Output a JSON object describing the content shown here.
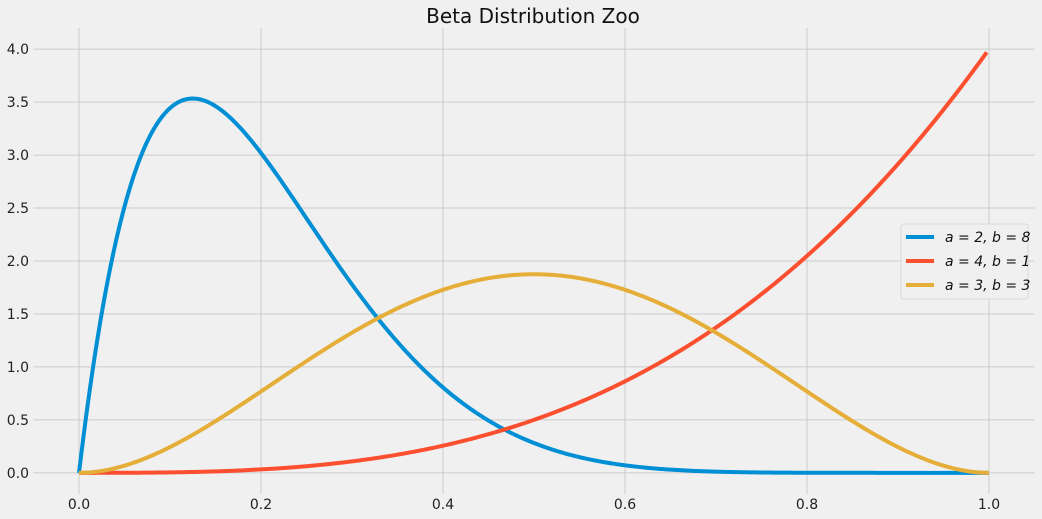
{
  "chart_data": {
    "type": "line",
    "title": "Beta Distribution Zoo",
    "xlabel": "",
    "ylabel": "",
    "xlim": [
      -0.05,
      1.05
    ],
    "ylim": [
      -0.2,
      4.2
    ],
    "xticks": [
      "0.0",
      "0.2",
      "0.4",
      "0.6",
      "0.8",
      "1.0"
    ],
    "yticks": [
      "0.0",
      "0.5",
      "1.0",
      "1.5",
      "2.0",
      "2.5",
      "3.0",
      "3.5",
      "4.0"
    ],
    "grid": true,
    "legend_position": "center-right",
    "x": [
      0,
      0.1,
      0.2,
      0.3,
      0.4,
      0.5,
      0.6,
      0.7,
      0.8,
      0.9,
      1.0
    ],
    "series": [
      {
        "name": "a = 2, b = 8",
        "a": 2,
        "b": 8,
        "color": "#008fd5",
        "values": [
          0,
          3.444,
          3.02,
          1.779,
          0.806,
          0.281,
          0.071,
          0.011,
          0.0007,
          0,
          0
        ]
      },
      {
        "name": "a = 4, b = 1",
        "a": 4,
        "b": 1,
        "color": "#fc4f30",
        "values": [
          0,
          0.004,
          0.032,
          0.108,
          0.256,
          0.5,
          0.864,
          1.372,
          2.048,
          2.916,
          4.0
        ]
      },
      {
        "name": "a = 3, b = 3",
        "a": 3,
        "b": 3,
        "color": "#e5ae38",
        "values": [
          0,
          0.243,
          0.768,
          1.323,
          1.728,
          1.875,
          1.728,
          1.323,
          0.768,
          0.243,
          0
        ]
      }
    ]
  }
}
